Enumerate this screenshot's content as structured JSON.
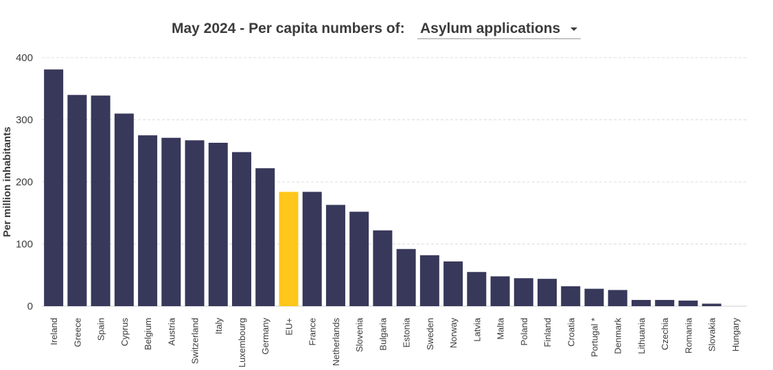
{
  "title_prefix": "May 2024 - Per capita numbers of:",
  "selector": {
    "selected": "Asylum applications"
  },
  "colors": {
    "bar": "#38385b",
    "highlight": "#ffc61b",
    "grid": "#dcdcdc",
    "text": "#3b3b3b"
  },
  "chart_data": {
    "type": "bar",
    "title": "May 2024 - Per capita numbers of: Asylum applications",
    "xlabel": "",
    "ylabel": "Per million inhabitants",
    "ylim": [
      0,
      400
    ],
    "yticks": [
      0,
      100,
      200,
      300,
      400
    ],
    "grid": true,
    "highlight_category": "EU+",
    "categories": [
      "Ireland",
      "Greece",
      "Spain",
      "Cyprus",
      "Belgium",
      "Austria",
      "Switzerland",
      "Italy",
      "Luxembourg",
      "Germany",
      "EU+",
      "France",
      "Netherlands",
      "Slovenia",
      "Bulgaria",
      "Estonia",
      "Sweden",
      "Norway",
      "Latvia",
      "Malta",
      "Poland",
      "Finland",
      "Croatia",
      "Portugal *",
      "Denmark",
      "Lithuania",
      "Czechia",
      "Romania",
      "Slovakia",
      "Hungary"
    ],
    "values": [
      381,
      340,
      339,
      310,
      275,
      271,
      267,
      263,
      248,
      222,
      184,
      184,
      163,
      152,
      122,
      92,
      82,
      72,
      55,
      48,
      45,
      44,
      32,
      28,
      26,
      10,
      10,
      9,
      4,
      0
    ]
  }
}
